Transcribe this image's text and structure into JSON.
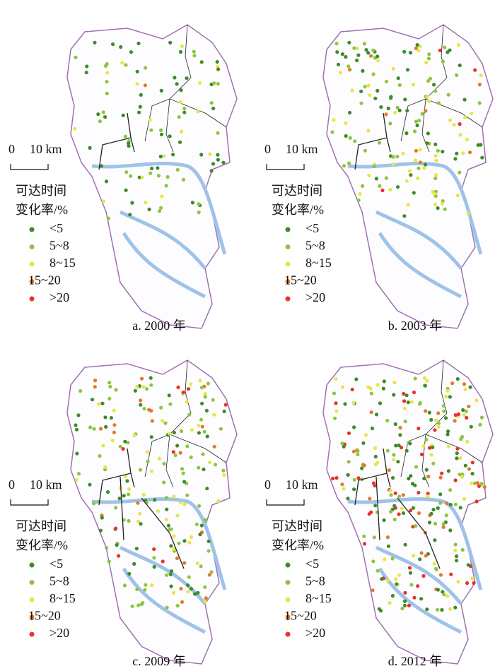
{
  "panels": [
    {
      "caption": "a. 2000 年",
      "scale_bar": {
        "start": "0",
        "end": "10 km"
      },
      "legend": {
        "title": [
          "可达时间",
          "变化率/%"
        ],
        "items": [
          {
            "label": "<5",
            "color": "#3f8a2a"
          },
          {
            "label": "5~8",
            "color": "#8cc63f"
          },
          {
            "label": "8~15",
            "color": "#e6e64a"
          },
          {
            "label": "15~20",
            "color": "#e07b2a"
          },
          {
            "label": ">20",
            "color": "#e8322a"
          }
        ]
      }
    },
    {
      "caption": "b. 2003 年",
      "scale_bar": {
        "start": "0",
        "end": "10 km"
      },
      "legend": {
        "title": [
          "可达时间",
          "变化率/%"
        ],
        "items": [
          {
            "label": "<5",
            "color": "#3f8a2a"
          },
          {
            "label": "5~8",
            "color": "#8cc63f"
          },
          {
            "label": "8~15",
            "color": "#e6e64a"
          },
          {
            "label": "15~20",
            "color": "#e07b2a"
          },
          {
            "label": ">20",
            "color": "#e8322a"
          }
        ]
      }
    },
    {
      "caption": "c. 2009 年",
      "scale_bar": {
        "start": "0",
        "end": "10 km"
      },
      "legend": {
        "title": [
          "可达时间",
          "变化率/%"
        ],
        "items": [
          {
            "label": "<5",
            "color": "#3f8a2a"
          },
          {
            "label": "5~8",
            "color": "#8cc63f"
          },
          {
            "label": "8~15",
            "color": "#e6e64a"
          },
          {
            "label": "15~20",
            "color": "#e07b2a"
          },
          {
            "label": ">20",
            "color": "#e8322a"
          }
        ]
      }
    },
    {
      "caption": "d. 2012 年",
      "scale_bar": {
        "start": "0",
        "end": "10 km"
      },
      "legend": {
        "title": [
          "可达时间",
          "变化率/%"
        ],
        "items": [
          {
            "label": "<5",
            "color": "#3f8a2a"
          },
          {
            "label": "5~8",
            "color": "#8cc63f"
          },
          {
            "label": "8~15",
            "color": "#e6e64a"
          },
          {
            "label": "15~20",
            "color": "#e07b2a"
          },
          {
            "label": ">20",
            "color": "#e8322a"
          }
        ]
      }
    }
  ]
}
